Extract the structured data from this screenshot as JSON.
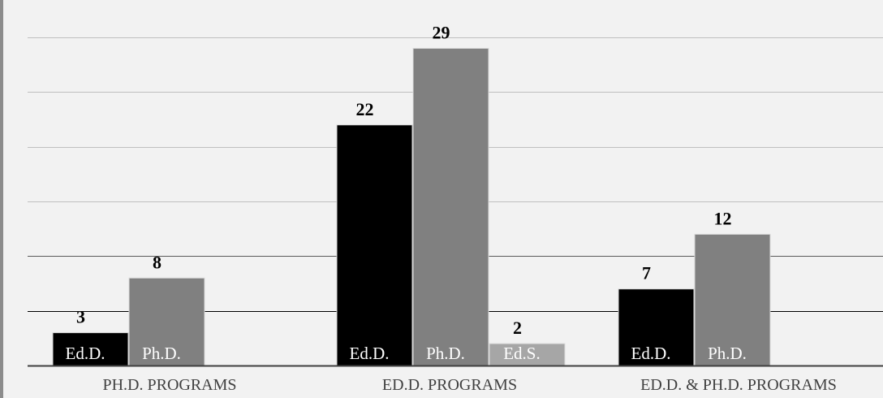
{
  "chart_data": {
    "type": "bar",
    "categories": [
      "PH.D. PROGRAMS",
      "ED.D. PROGRAMS",
      "ED.D. & PH.D. PROGRAMS"
    ],
    "series": [
      {
        "label": "Ed.D.",
        "color": "#000000",
        "label_color": "#ffffff",
        "values": [
          3,
          22,
          7
        ]
      },
      {
        "label": "Ph.D.",
        "color": "#808080",
        "label_color": "#ffffff",
        "values": [
          8,
          29,
          12
        ]
      },
      {
        "label": "Ed.S.",
        "color": "#a6a6a6",
        "label_color": "#ffffff",
        "values": [
          null,
          2,
          null
        ]
      }
    ],
    "ylim": [
      0,
      30
    ],
    "grid_step": 5,
    "grid": true,
    "title": "",
    "xlabel": "",
    "ylabel": "",
    "colors": {
      "background": "#f2f2f2",
      "grid_light": "#bfbfbf",
      "grid_dark": "#000000",
      "axis": "#404040",
      "text": "#000000",
      "category_text": "#404040"
    }
  }
}
